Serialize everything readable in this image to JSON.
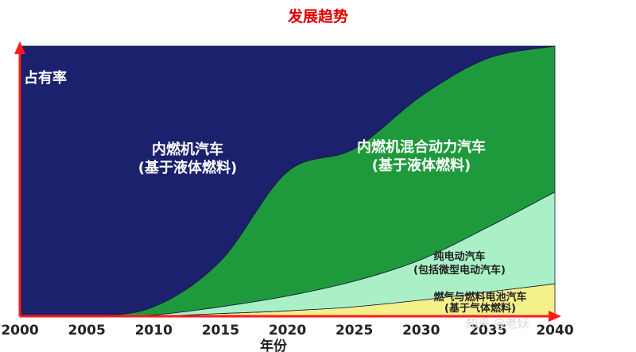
{
  "title": "发展趋势",
  "watermark": "知乎 @老妖",
  "chart_data": {
    "type": "area",
    "stacked": true,
    "normalized": true,
    "title": "发展趋势",
    "xlabel": "年份",
    "ylabel": "占有率",
    "x": [
      2000,
      2005,
      2010,
      2015,
      2020,
      2025,
      2030,
      2035,
      2040
    ],
    "xlim": [
      2000,
      2040
    ],
    "ylim": [
      0,
      100
    ],
    "grid": false,
    "legend": "none",
    "series": [
      {
        "name": "燃气与燃料电池汽车(基于气体燃料)",
        "color": "#f4f08a",
        "label_color": "#222222",
        "label_lines": [
          "燃气与燃料电池汽车",
          "(基于气体燃料)"
        ],
        "values": [
          0,
          0,
          0,
          1,
          2,
          3.5,
          6,
          9,
          12
        ]
      },
      {
        "name": "纯电动汽车(包括微型电动汽车)",
        "color": "#a9f0c6",
        "label_color": "#222222",
        "label_lines": [
          "纯电动汽车",
          "(包括微型电动汽车)"
        ],
        "values": [
          0,
          0,
          0.5,
          2.5,
          5.5,
          9.5,
          15,
          24,
          34
        ]
      },
      {
        "name": "内燃机混合动力汽车(基于液体燃料)",
        "color": "#1e9a3c",
        "label_color": "#ffffff",
        "label_lines": [
          "内燃机混合动力汽车",
          "(基于液体燃料)"
        ],
        "values": [
          0,
          0,
          3,
          17,
          46,
          49,
          60.5,
          62.5,
          54
        ]
      },
      {
        "name": "内燃机汽车(基于液体燃料)",
        "color": "#1c216e",
        "label_color": "#ffffff",
        "label_lines": [
          "内燃机汽车",
          "(基于液体燃料)"
        ],
        "values": [
          100,
          100,
          96.5,
          79.5,
          46.5,
          38,
          18.5,
          4.5,
          0
        ]
      }
    ]
  }
}
